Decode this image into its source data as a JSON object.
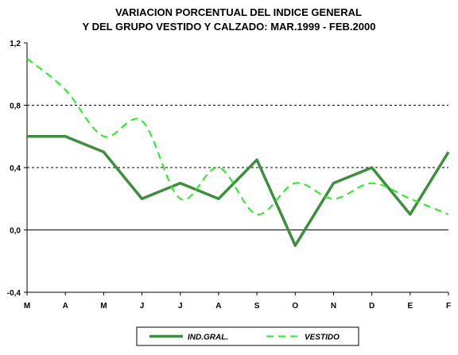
{
  "chart_data": {
    "type": "line",
    "title": [
      "VARIACION PORCENTUAL DEL INDICE GENERAL",
      "Y DEL GRUPO VESTIDO Y CALZADO: MAR.1999 - FEB.2000"
    ],
    "categories": [
      "M",
      "A",
      "M",
      "J",
      "J",
      "A",
      "S",
      "O",
      "N",
      "D",
      "E",
      "F"
    ],
    "ylim": [
      -0.4,
      1.2
    ],
    "yticks": [
      -0.4,
      0.0,
      0.4,
      0.8,
      1.2
    ],
    "ytick_labels": [
      "-0,4",
      "0,0",
      "0,4",
      "0,8",
      "1,2"
    ],
    "xlabel": "",
    "ylabel": "",
    "grid": "dashed horizontal at 0.4 and 0.8, solid at 0",
    "legend_position": "bottom-center",
    "series": [
      {
        "name": "IND.GRAL.",
        "color": "#3c8f3c",
        "style": "solid",
        "values": [
          0.6,
          0.6,
          0.5,
          0.2,
          0.3,
          0.2,
          0.45,
          -0.1,
          0.3,
          0.4,
          0.1,
          0.5
        ]
      },
      {
        "name": "VESTIDO",
        "color": "#22ee22",
        "style": "dashed",
        "values": [
          1.1,
          0.9,
          0.6,
          0.7,
          0.2,
          0.4,
          0.1,
          0.3,
          0.2,
          0.3,
          0.2,
          0.1
        ]
      }
    ]
  }
}
